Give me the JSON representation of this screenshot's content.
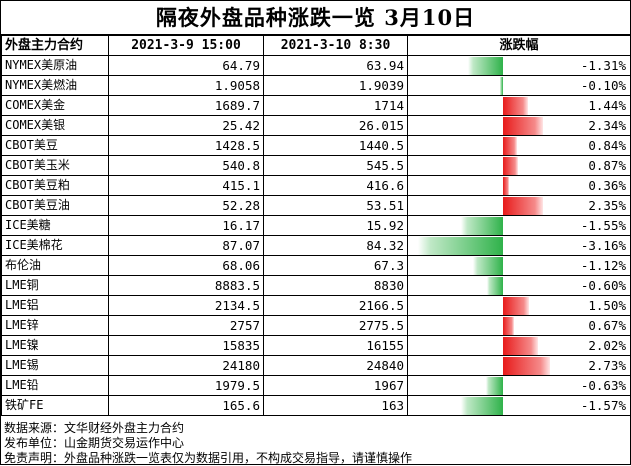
{
  "title": "隔夜外盘品种涨跌一览 3月10日",
  "headers": {
    "name": "外盘主力合约",
    "prev": "2021-3-9 15:00",
    "cur": "2021-3-10 8:30",
    "change": "涨跌幅"
  },
  "colors": {
    "positive": "#e81b1b",
    "negative": "#2fb24a"
  },
  "max_abs_change_pct": 3.16,
  "rows": [
    {
      "name": "NYMEX美原油",
      "prev": "64.79",
      "cur": "63.94",
      "change": "-1.31%",
      "pct": -1.31
    },
    {
      "name": "NYMEX美燃油",
      "prev": "1.9058",
      "cur": "1.9039",
      "change": "-0.10%",
      "pct": -0.1
    },
    {
      "name": "COMEX美金",
      "prev": "1689.7",
      "cur": "1714",
      "change": "1.44%",
      "pct": 1.44
    },
    {
      "name": "COMEX美银",
      "prev": "25.42",
      "cur": "26.015",
      "change": "2.34%",
      "pct": 2.34
    },
    {
      "name": "CBOT美豆",
      "prev": "1428.5",
      "cur": "1440.5",
      "change": "0.84%",
      "pct": 0.84
    },
    {
      "name": "CBOT美玉米",
      "prev": "540.8",
      "cur": "545.5",
      "change": "0.87%",
      "pct": 0.87
    },
    {
      "name": "CBOT美豆粕",
      "prev": "415.1",
      "cur": "416.6",
      "change": "0.36%",
      "pct": 0.36
    },
    {
      "name": "CBOT美豆油",
      "prev": "52.28",
      "cur": "53.51",
      "change": "2.35%",
      "pct": 2.35
    },
    {
      "name": "ICE美糖",
      "prev": "16.17",
      "cur": "15.92",
      "change": "-1.55%",
      "pct": -1.55
    },
    {
      "name": "ICE美棉花",
      "prev": "87.07",
      "cur": "84.32",
      "change": "-3.16%",
      "pct": -3.16
    },
    {
      "name": "布伦油",
      "prev": "68.06",
      "cur": "67.3",
      "change": "-1.12%",
      "pct": -1.12
    },
    {
      "name": "LME铜",
      "prev": "8883.5",
      "cur": "8830",
      "change": "-0.60%",
      "pct": -0.6
    },
    {
      "name": "LME铝",
      "prev": "2134.5",
      "cur": "2166.5",
      "change": "1.50%",
      "pct": 1.5
    },
    {
      "name": "LME锌",
      "prev": "2757",
      "cur": "2775.5",
      "change": "0.67%",
      "pct": 0.67
    },
    {
      "name": "LME镍",
      "prev": "15835",
      "cur": "16155",
      "change": "2.02%",
      "pct": 2.02
    },
    {
      "name": "LME锡",
      "prev": "24180",
      "cur": "24840",
      "change": "2.73%",
      "pct": 2.73
    },
    {
      "name": "LME铅",
      "prev": "1979.5",
      "cur": "1967",
      "change": "-0.63%",
      "pct": -0.63
    },
    {
      "name": "铁矿FE",
      "prev": "165.6",
      "cur": "163",
      "change": "-1.57%",
      "pct": -1.57
    }
  ],
  "footer": [
    "数据来源：文华财经外盘主力合约",
    "发布单位：山金期货交易运作中心",
    "免责声明：外盘品种涨跌一览表仅为数据引用，不构成交易指导，请谨慎操作"
  ]
}
